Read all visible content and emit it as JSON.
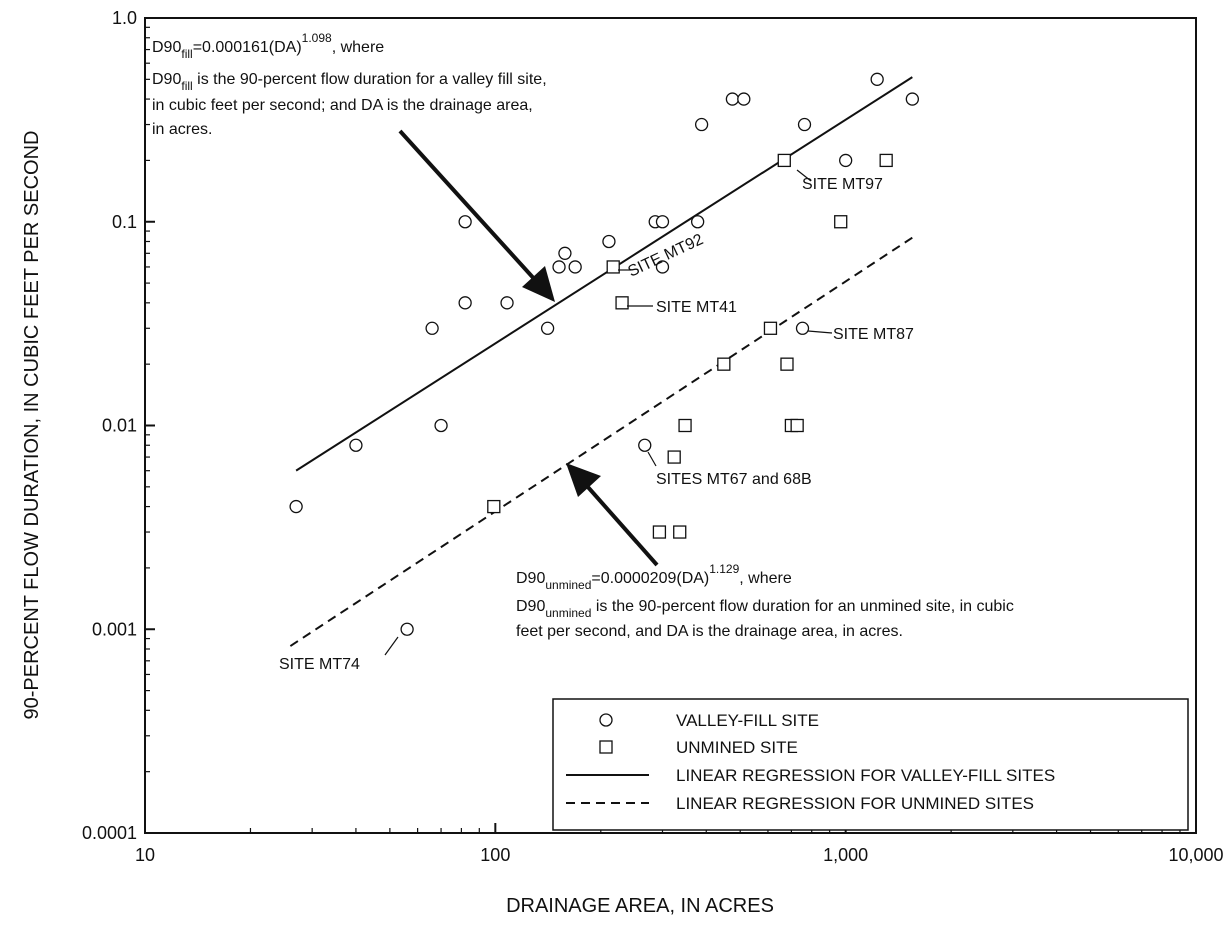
{
  "chart_data": {
    "type": "scatter",
    "xlabel": "DRAINAGE AREA, IN ACRES",
    "ylabel": "90-PERCENT FLOW DURATION, IN CUBIC FEET PER SECOND",
    "xscale": "log",
    "yscale": "log",
    "xlim": [
      10,
      10000
    ],
    "ylim": [
      0.0001,
      1.0
    ],
    "x_ticks": [
      {
        "value": 10,
        "label": "10"
      },
      {
        "value": 100,
        "label": "100"
      },
      {
        "value": 1000,
        "label": "1,000"
      },
      {
        "value": 10000,
        "label": "10,000"
      }
    ],
    "y_ticks": [
      {
        "value": 0.0001,
        "label": "0.0001"
      },
      {
        "value": 0.001,
        "label": "0.001"
      },
      {
        "value": 0.01,
        "label": "0.01"
      },
      {
        "value": 0.1,
        "label": "0.1"
      },
      {
        "value": 1.0,
        "label": "1.0"
      }
    ],
    "grid": false,
    "legend_position": "bottom-right",
    "series": [
      {
        "name": "VALLEY-FILL SITE",
        "marker": "circle",
        "points": [
          [
            27,
            0.004
          ],
          [
            40,
            0.008
          ],
          [
            56,
            0.001
          ],
          [
            66,
            0.03
          ],
          [
            70,
            0.01
          ],
          [
            82,
            0.04
          ],
          [
            82,
            0.1
          ],
          [
            108,
            0.04
          ],
          [
            141,
            0.03
          ],
          [
            152,
            0.06
          ],
          [
            158,
            0.07
          ],
          [
            169,
            0.06
          ],
          [
            211,
            0.08
          ],
          [
            267,
            0.008
          ],
          [
            286,
            0.1
          ],
          [
            300,
            0.06
          ],
          [
            300,
            0.1
          ],
          [
            378,
            0.1
          ],
          [
            388,
            0.3
          ],
          [
            475,
            0.4
          ],
          [
            512,
            0.4
          ],
          [
            753,
            0.03
          ],
          [
            763,
            0.3
          ],
          [
            1000,
            0.2
          ],
          [
            1230,
            0.5
          ],
          [
            1550,
            0.4
          ]
        ]
      },
      {
        "name": "UNMINED SITE",
        "marker": "square",
        "points": [
          [
            99,
            0.004
          ],
          [
            217,
            0.06
          ],
          [
            230,
            0.04
          ],
          [
            294,
            0.003
          ],
          [
            324,
            0.007
          ],
          [
            336,
            0.003
          ],
          [
            348,
            0.01
          ],
          [
            449,
            0.02
          ],
          [
            610,
            0.03
          ],
          [
            668,
            0.2
          ],
          [
            680,
            0.02
          ],
          [
            700,
            0.01
          ],
          [
            727,
            0.01
          ],
          [
            968,
            0.1
          ],
          [
            1305,
            0.2
          ]
        ]
      },
      {
        "name": "LINEAR REGRESSION FOR  VALLEY-FILL SITES",
        "line": "solid",
        "coef": 0.000161,
        "exp": 1.098,
        "x_range": [
          27,
          1550
        ]
      },
      {
        "name": "LINEAR REGRESSION FOR UNMINED SITES",
        "line": "dashed",
        "coef": 2.09e-05,
        "exp": 1.129,
        "x_range": [
          26,
          1560
        ]
      }
    ],
    "equations": {
      "fill": {
        "prefix": "D90",
        "sub": "fill",
        "rhs": "=0.000161(DA)",
        "exponent": "1.098",
        "suffix": ", where",
        "desc_sub_prefix": "D90",
        "desc_sub": "fill",
        "desc_line1": " is the 90-percent flow duration for a valley fill site,",
        "desc_line2": "in cubic feet per second; and DA is the drainage area,",
        "desc_line3": "in acres."
      },
      "unmined": {
        "prefix": "D90",
        "sub": "unmined",
        "rhs": "=0.0000209(DA)",
        "exponent": "1.129",
        "suffix": ", where",
        "desc_sub_prefix": "D90",
        "desc_sub": "unmined",
        "desc_line1": " is the 90-percent flow duration for an unmined site, in cubic",
        "desc_line2": "feet per second, and DA is the drainage area, in acres."
      }
    },
    "site_labels": [
      "SITE MT97",
      "SITE MT92",
      "SITE MT41",
      "SITE MT87",
      "SITES MT67 and 68B",
      "SITE MT74"
    ]
  }
}
